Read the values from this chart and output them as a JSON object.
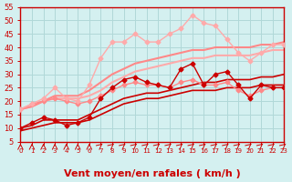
{
  "xlabel": "Vent moyen/en rafales ( km/h )",
  "ylabel": "",
  "bg_color": "#d4f0f0",
  "grid_color": "#b0d8d8",
  "axis_color": "#cc0000",
  "xlim": [
    0,
    23
  ],
  "ylim": [
    5,
    55
  ],
  "xticks": [
    0,
    1,
    2,
    3,
    4,
    5,
    6,
    7,
    8,
    9,
    10,
    11,
    12,
    13,
    14,
    15,
    16,
    17,
    18,
    19,
    20,
    21,
    22,
    23
  ],
  "yticks": [
    5,
    10,
    15,
    20,
    25,
    30,
    35,
    40,
    45,
    50,
    55
  ],
  "series": [
    {
      "x": [
        0,
        1,
        2,
        3,
        4,
        5,
        6,
        7,
        8,
        9,
        10,
        11,
        12,
        13,
        14,
        15,
        16,
        17,
        18,
        19,
        20,
        21,
        22,
        23
      ],
      "y": [
        10,
        12,
        14,
        13,
        11,
        12,
        14,
        21,
        25,
        28,
        29,
        27,
        26,
        25,
        32,
        34,
        26,
        30,
        31,
        26,
        21,
        26,
        25,
        25
      ],
      "color": "#cc0000",
      "marker": "D",
      "markersize": 2.5,
      "linewidth": 1.0,
      "zorder": 5
    },
    {
      "x": [
        0,
        1,
        2,
        3,
        4,
        5,
        6,
        7,
        8,
        9,
        10,
        11,
        12,
        13,
        14,
        15,
        16,
        17,
        18,
        19,
        20,
        21,
        22,
        23
      ],
      "y": [
        17,
        19,
        20,
        21,
        20,
        19,
        20,
        22,
        24,
        26,
        27,
        26,
        26,
        25,
        27,
        28,
        26,
        26,
        27,
        24,
        22,
        24,
        25,
        25
      ],
      "color": "#ff8888",
      "marker": "D",
      "markersize": 2.5,
      "linewidth": 1.0,
      "zorder": 4
    },
    {
      "x": [
        0,
        1,
        2,
        3,
        4,
        5,
        6,
        7,
        8,
        9,
        10,
        11,
        12,
        13,
        14,
        15,
        16,
        17,
        18,
        19,
        20,
        21,
        22,
        23
      ],
      "y": [
        17,
        19,
        21,
        25,
        21,
        20,
        26,
        36,
        42,
        42,
        45,
        42,
        42,
        45,
        47,
        52,
        49,
        48,
        43,
        38,
        35,
        38,
        41,
        41
      ],
      "color": "#ffaaaa",
      "marker": "D",
      "markersize": 2.5,
      "linewidth": 1.0,
      "zorder": 4
    },
    {
      "x": [
        0,
        1,
        2,
        3,
        4,
        5,
        6,
        7,
        8,
        9,
        10,
        11,
        12,
        13,
        14,
        15,
        16,
        17,
        18,
        19,
        20,
        21,
        22,
        23
      ],
      "y": [
        9,
        10,
        11,
        12,
        12,
        12,
        13,
        15,
        17,
        19,
        20,
        21,
        21,
        22,
        23,
        24,
        24,
        24,
        25,
        25,
        25,
        26,
        26,
        26
      ],
      "color": "#cc0000",
      "marker": null,
      "markersize": 0,
      "linewidth": 1.2,
      "zorder": 3,
      "smooth": true
    },
    {
      "x": [
        0,
        1,
        2,
        3,
        4,
        5,
        6,
        7,
        8,
        9,
        10,
        11,
        12,
        13,
        14,
        15,
        16,
        17,
        18,
        19,
        20,
        21,
        22,
        23
      ],
      "y": [
        10,
        11,
        13,
        13,
        13,
        13,
        15,
        17,
        19,
        21,
        22,
        23,
        23,
        24,
        25,
        26,
        27,
        27,
        28,
        28,
        28,
        29,
        29,
        30
      ],
      "color": "#cc0000",
      "marker": null,
      "markersize": 0,
      "linewidth": 1.2,
      "zorder": 3,
      "smooth": true
    },
    {
      "x": [
        0,
        1,
        2,
        3,
        4,
        5,
        6,
        7,
        8,
        9,
        10,
        11,
        12,
        13,
        14,
        15,
        16,
        17,
        18,
        19,
        20,
        21,
        22,
        23
      ],
      "y": [
        17,
        18,
        20,
        21,
        21,
        21,
        22,
        24,
        27,
        29,
        31,
        32,
        33,
        34,
        35,
        36,
        36,
        37,
        37,
        37,
        37,
        38,
        39,
        39
      ],
      "color": "#ffaaaa",
      "marker": null,
      "markersize": 0,
      "linewidth": 1.5,
      "zorder": 2,
      "smooth": true
    },
    {
      "x": [
        0,
        1,
        2,
        3,
        4,
        5,
        6,
        7,
        8,
        9,
        10,
        11,
        12,
        13,
        14,
        15,
        16,
        17,
        18,
        19,
        20,
        21,
        22,
        23
      ],
      "y": [
        17,
        18,
        20,
        22,
        22,
        22,
        24,
        27,
        30,
        32,
        34,
        35,
        36,
        37,
        38,
        39,
        39,
        40,
        40,
        40,
        40,
        41,
        41,
        42
      ],
      "color": "#ff8888",
      "marker": null,
      "markersize": 0,
      "linewidth": 1.5,
      "zorder": 2,
      "smooth": true
    }
  ],
  "arrow_color": "#cc0000",
  "xlabel_fontsize": 8,
  "tick_fontsize": 6
}
